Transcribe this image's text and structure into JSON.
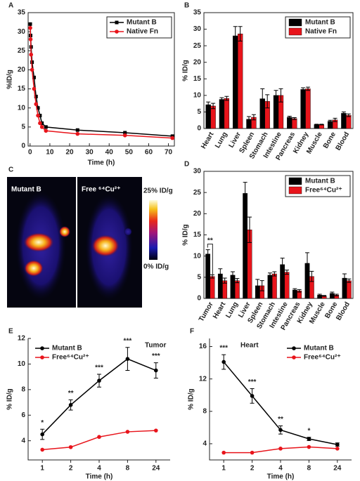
{
  "chart_data": [
    {
      "type": "line",
      "label": "A",
      "xlabel": "Time (h)",
      "ylabel": "%ID/g",
      "x": [
        0.08,
        0.25,
        0.5,
        1,
        2,
        3,
        4,
        5,
        6,
        8,
        24,
        48,
        72
      ],
      "series": [
        {
          "name": "Mutant B",
          "color": "#000000",
          "marker": "square",
          "values": [
            32,
            29,
            26,
            22,
            18,
            13,
            10,
            8,
            6,
            5,
            4.2,
            3.5,
            2.6
          ]
        },
        {
          "name": "Native Fn",
          "color": "#e8141b",
          "marker": "circle",
          "values": [
            31,
            28,
            24,
            20,
            15,
            11,
            8,
            6,
            5,
            4,
            3.2,
            2.8,
            2.1
          ]
        }
      ],
      "xlim": [
        -1,
        73
      ],
      "xticks": [
        0,
        10,
        20,
        30,
        40,
        50,
        60,
        70
      ],
      "ylim": [
        0,
        35
      ],
      "yticks": [
        0,
        5,
        10,
        15,
        20,
        25,
        30,
        35
      ],
      "legend": "upper right"
    },
    {
      "type": "bar",
      "label": "B",
      "ylabel": "% ID/g",
      "categories": [
        "Heart",
        "Lung",
        "Liver",
        "Spleen",
        "Stomach",
        "Intestine",
        "Pancreas",
        "Kidney",
        "Muscle",
        "Bone",
        "Blood"
      ],
      "series": [
        {
          "name": "Mutant B",
          "color": "#000000",
          "values": [
            7.2,
            8.8,
            28,
            2.8,
            9,
            10,
            3.4,
            11.8,
            1.2,
            2.2,
            4.6
          ],
          "errors": [
            0.8,
            0.5,
            2.8,
            0.8,
            3,
            1.5,
            0.3,
            0.5,
            0.1,
            0.3,
            0.4
          ]
        },
        {
          "name": "Native Fn",
          "color": "#e8141b",
          "values": [
            6.8,
            9.1,
            28.6,
            3.4,
            8.2,
            10,
            3,
            12,
            1.2,
            2.6,
            4
          ],
          "errors": [
            0.8,
            0.6,
            2.2,
            0.8,
            2,
            2,
            0.3,
            0.5,
            0.1,
            0.5,
            0.4
          ]
        }
      ],
      "ylim": [
        0,
        35
      ],
      "yticks": [
        0,
        5,
        10,
        15,
        20,
        25,
        30,
        35
      ],
      "legend": "upper right"
    },
    {
      "type": "bar",
      "label": "D",
      "ylabel": "% ID/g",
      "categories": [
        "Tumor",
        "Heart",
        "Lung",
        "Liver",
        "Spleen",
        "Stomach",
        "Intestine",
        "Pancreas",
        "Kidney",
        "Muscle",
        "Bone",
        "Blood"
      ],
      "annotations": [
        "**",
        null,
        null,
        null,
        null,
        null,
        null,
        null,
        null,
        null,
        null,
        null
      ],
      "series": [
        {
          "name": "Mutant B",
          "color": "#000000",
          "values": [
            10.5,
            5.8,
            5.5,
            24.8,
            3,
            5.5,
            8,
            2,
            8.3,
            0.8,
            1.2,
            4.8
          ],
          "errors": [
            1,
            1.2,
            0.8,
            2.6,
            1.5,
            0.5,
            1.5,
            0.3,
            2.5,
            0.2,
            0.3,
            1
          ]
        },
        {
          "name": "Free⁶⁴Cu²⁺",
          "color": "#e8141b",
          "values": [
            5.2,
            4.2,
            4.2,
            16.2,
            3,
            5.8,
            6.2,
            1.8,
            5.2,
            0.6,
            0.8,
            4.2
          ],
          "errors": [
            0.4,
            0.6,
            0.5,
            3,
            1.2,
            0.5,
            0.5,
            0.3,
            1.2,
            0.1,
            0.2,
            0.4
          ]
        }
      ],
      "ylim": [
        0,
        30
      ],
      "yticks": [
        0,
        5,
        10,
        15,
        20,
        25,
        30
      ],
      "legend": "upper right"
    },
    {
      "type": "line",
      "label": "E",
      "xlabel": "Time (h)",
      "ylabel": "% ID/g",
      "note": "Tumor",
      "categories": [
        "1",
        "2",
        "4",
        "8",
        "24"
      ],
      "annotations": [
        "*",
        "**",
        "***",
        "***",
        "***"
      ],
      "series": [
        {
          "name": "Mutant B",
          "color": "#000000",
          "marker": "circle",
          "values": [
            4.5,
            6.8,
            8.7,
            10.4,
            9.5
          ],
          "errors": [
            0.4,
            0.4,
            0.5,
            0.9,
            0.6
          ]
        },
        {
          "name": "Free⁶⁴Cu²⁺",
          "color": "#e8141b",
          "marker": "circle",
          "values": [
            3.3,
            3.5,
            4.3,
            4.7,
            4.8
          ]
        }
      ],
      "ylim": [
        2.5,
        12
      ],
      "yticks": [
        4,
        6,
        8,
        10,
        12
      ],
      "legend": "upper left"
    },
    {
      "type": "line",
      "label": "F",
      "xlabel": "Time (h)",
      "ylabel": "% ID/g",
      "note": "Heart",
      "categories": [
        "1",
        "2",
        "4",
        "8",
        "24"
      ],
      "annotations": [
        "***",
        "***",
        "**",
        "*",
        null
      ],
      "series": [
        {
          "name": "Mutant B",
          "color": "#000000",
          "marker": "circle",
          "values": [
            14.1,
            9.9,
            5.7,
            4.6,
            3.9
          ],
          "errors": [
            0.9,
            0.9,
            0.5,
            0.2,
            0.2
          ]
        },
        {
          "name": "Free⁶⁴Cu²⁺",
          "color": "#e8141b",
          "marker": "circle",
          "values": [
            2.9,
            2.9,
            3.4,
            3.6,
            3.4
          ]
        }
      ],
      "ylim": [
        2,
        17
      ],
      "yticks": [
        4,
        8,
        12,
        16
      ],
      "legend": "upper right"
    }
  ],
  "image_panel": {
    "label": "C",
    "left_caption": "Mutant B",
    "right_caption": "Free ⁶⁴Cu²⁺",
    "scale_max": "25% ID/g",
    "scale_min": "0% ID/g"
  }
}
